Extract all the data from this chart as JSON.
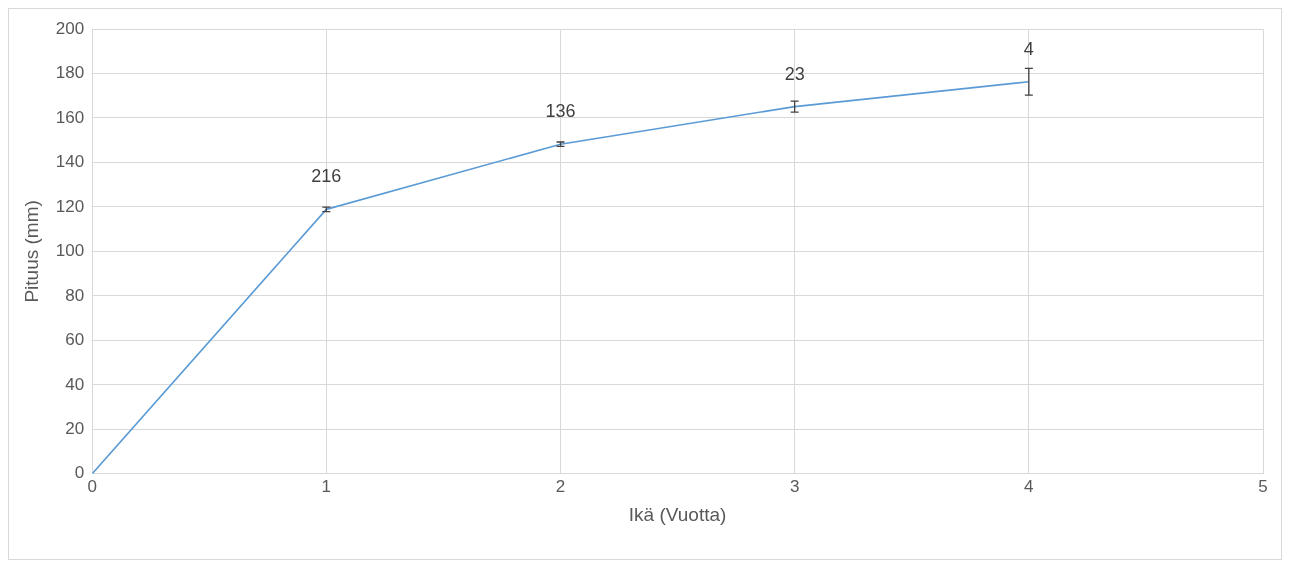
{
  "chart_data": {
    "type": "line",
    "xlabel": "Ikä (Vuotta)",
    "ylabel": "Pituus (mm)",
    "x": [
      0,
      1,
      2,
      3,
      4
    ],
    "series": [
      {
        "color": "#5b9bd5",
        "values": [
          0,
          118.9,
          148.2,
          165.1,
          176.3
        ],
        "errors": [
          null,
          1,
          1,
          2.5,
          6
        ]
      }
    ],
    "xlim": [
      0,
      5
    ],
    "xticks": [
      0,
      1,
      2,
      3,
      4,
      5
    ],
    "ylim": [
      0,
      200
    ],
    "yticks": [
      0,
      20,
      40,
      60,
      80,
      100,
      120,
      140,
      160,
      180,
      200
    ],
    "grid": true,
    "marker": "none",
    "line_style": "solid",
    "legend": false,
    "annotations": [
      {
        "text": "216",
        "x": 1,
        "y": 118.9
      },
      {
        "text": "136",
        "x": 2,
        "y": 148.2
      },
      {
        "text": "23",
        "x": 3,
        "y": 165.1
      },
      {
        "text": "4",
        "x": 4,
        "y": 176.3
      }
    ]
  }
}
